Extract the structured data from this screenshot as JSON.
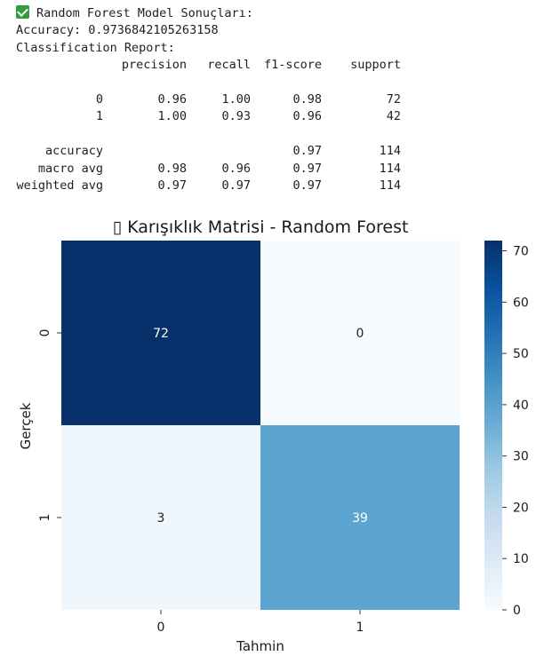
{
  "output": {
    "header": "Random Forest Model Sonuçları:",
    "accuracy_line": "Accuracy: 0.9736842105263158",
    "report_title": "Classification Report:",
    "report": {
      "columns": [
        "precision",
        "recall",
        "f1-score",
        "support"
      ],
      "rows": [
        {
          "label": "0",
          "values": [
            "0.96",
            "1.00",
            "0.98",
            "72"
          ]
        },
        {
          "label": "1",
          "values": [
            "1.00",
            "0.93",
            "0.96",
            "42"
          ]
        },
        {
          "label": "",
          "values": [
            "",
            "",
            "",
            ""
          ]
        },
        {
          "label": "accuracy",
          "values": [
            "",
            "",
            "0.97",
            "114"
          ]
        },
        {
          "label": "macro avg",
          "values": [
            "0.98",
            "0.96",
            "0.97",
            "114"
          ]
        },
        {
          "label": "weighted avg",
          "values": [
            "0.97",
            "0.97",
            "0.97",
            "114"
          ]
        }
      ]
    }
  },
  "colors": {
    "check_icon": "#2e9d3a",
    "cmap_low": "#f7fbff",
    "cmap_high": "#08306b"
  },
  "chart_data": {
    "type": "heatmap",
    "title": "▯ Karışıklık Matrisi - Random Forest",
    "xlabel": "Tahmin",
    "ylabel": "Gerçek",
    "x_categories": [
      "0",
      "1"
    ],
    "y_categories": [
      "0",
      "1"
    ],
    "values": [
      [
        72,
        0
      ],
      [
        3,
        39
      ]
    ],
    "colorbar": {
      "min": 0,
      "max": 72,
      "ticks": [
        0,
        10,
        20,
        30,
        40,
        50,
        60,
        70
      ]
    },
    "colormap": "Blues"
  }
}
